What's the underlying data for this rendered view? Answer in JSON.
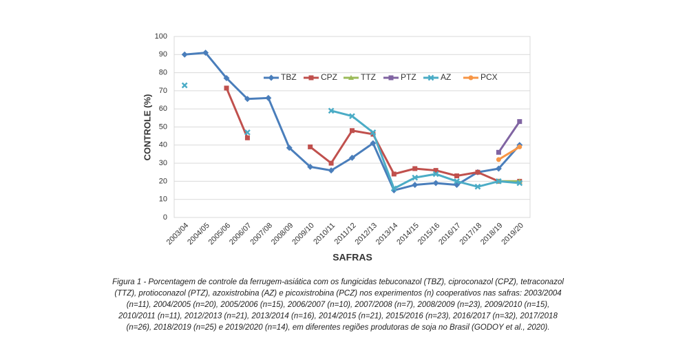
{
  "chart_data": {
    "type": "line",
    "y_label": "CONTROLE (%)",
    "x_label": "SAFRAS",
    "categories": [
      "2003/04",
      "2004/05",
      "2005/06",
      "2006/07",
      "2007/08",
      "2008/09",
      "2009/10",
      "2010/11",
      "2011/12",
      "2012/13",
      "2013/14",
      "2014/15",
      "2015/16",
      "2016/17",
      "2017/18",
      "2018/19",
      "2019/20"
    ],
    "ylim": [
      0,
      100
    ],
    "yticks": [
      0,
      10,
      20,
      30,
      40,
      50,
      60,
      70,
      80,
      90,
      100
    ],
    "grid": true,
    "legend": "top",
    "series": [
      {
        "name": "TBZ",
        "color": "#4a7ebb",
        "marker": "diamond",
        "values": [
          90,
          91,
          77,
          65.5,
          66,
          38.5,
          28,
          26,
          33,
          41,
          15,
          18,
          19,
          18,
          25,
          27,
          40
        ]
      },
      {
        "name": "CPZ",
        "color": "#c0504d",
        "marker": "square",
        "values": [
          null,
          null,
          71.5,
          44,
          null,
          null,
          39,
          30,
          48,
          46,
          24,
          27,
          26,
          23,
          25,
          20,
          20
        ]
      },
      {
        "name": "TTZ",
        "color": "#9bbb59",
        "marker": "triangle",
        "values": [
          null,
          null,
          null,
          null,
          null,
          null,
          null,
          null,
          null,
          null,
          null,
          null,
          null,
          null,
          null,
          20,
          20
        ]
      },
      {
        "name": "PTZ",
        "color": "#8064a2",
        "marker": "square",
        "values": [
          null,
          null,
          null,
          null,
          null,
          null,
          null,
          null,
          null,
          null,
          null,
          null,
          null,
          null,
          null,
          36,
          53
        ]
      },
      {
        "name": "AZ",
        "color": "#4bacc6",
        "marker": "x",
        "values": [
          73,
          null,
          null,
          47,
          null,
          null,
          null,
          59,
          56,
          47,
          16,
          22,
          24,
          20,
          17,
          20,
          19
        ]
      },
      {
        "name": "PCX",
        "color": "#f79646",
        "marker": "circle",
        "values": [
          null,
          null,
          null,
          null,
          null,
          null,
          null,
          null,
          null,
          null,
          null,
          null,
          null,
          null,
          null,
          32,
          39
        ]
      }
    ]
  },
  "caption": [
    "Figura 1 - Porcentagem de controle da ferrugem-asiática com os fungicidas tebuconazol (TBZ), ciproconazol (CPZ), tetraconazol",
    "(TTZ), protioconazol (PTZ), azoxistrobina (AZ) e picoxistrobina (PCZ) nos experimentos (n) cooperativos nas safras: 2003/2004",
    "(n=11), 2004/2005 (n=20), 2005/2006 (n=15), 2006/2007 (n=10), 2007/2008 (n=7), 2008/2009 (n=23), 2009/2010 (n=15),",
    "2010/2011 (n=11), 2012/2013 (n=21), 2013/2014 (n=16), 2014/2015 (n=21), 2015/2016 (n=23), 2016/2017 (n=32), 2017/2018",
    "(n=26), 2018/2019 (n=25) e 2019/2020 (n=14), em diferentes regiões produtoras de soja no Brasil (GODOY et al., 2020)."
  ]
}
